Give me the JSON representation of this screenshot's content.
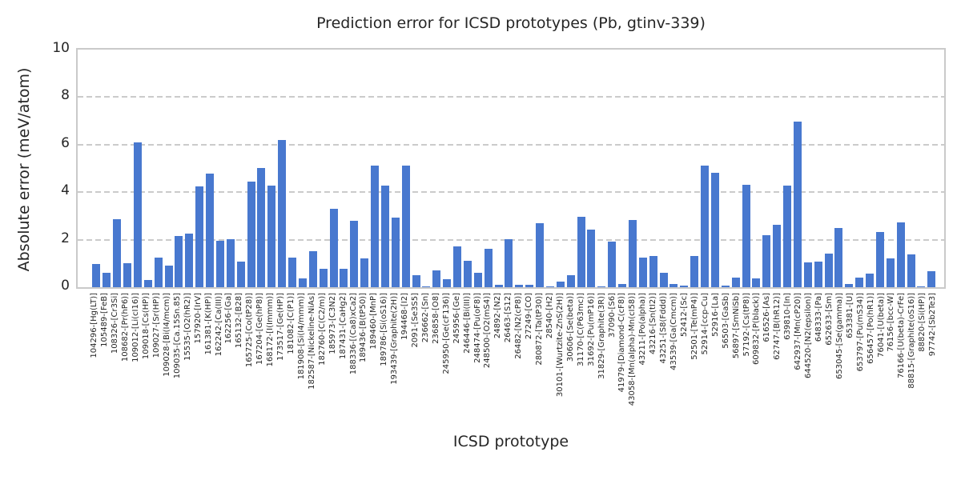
{
  "figure": {
    "background": "#ffffff",
    "bar_color": "#4878CF",
    "grid_color": "#cbcbcb",
    "spine_color": "#cacaca",
    "text_color": "#262626"
  },
  "chart_data": {
    "type": "bar",
    "title": "Prediction error for ICSD prototypes (Pb, gtinv-339)",
    "xlabel": "ICSD prototype",
    "ylabel": "Absolute error (meV/atom)",
    "ylim": [
      0,
      10
    ],
    "yticks": [
      0,
      2,
      4,
      6,
      8,
      10
    ],
    "grid": "horizontal-dashed",
    "legend": "none",
    "categories": [
      "104296-[Hg(LT)]",
      "105489-[FeB]",
      "108326-[Cr3Si]",
      "108682-[Pr(hP6)]",
      "109012-[Li(cI16)]",
      "109018-[Cs(HP)]",
      "109027-[Sr(HP)]",
      "109028-[Bi(I4/mcm)]",
      "109035-[Ca.15Sn.85]",
      "15535-[O2(hR2)]",
      "157920-[IrV]",
      "161381-[K(HP)]",
      "162242-[Ca(III)]",
      "162256-[Ga]",
      "165132-[B28]",
      "165725-[Co(tP28)]",
      "167204-[Ge(hP8)]",
      "168172-[I(Immm)]",
      "173517-[Ge(HP)]",
      "181082-[C(P1)]",
      "181908-[Si(I4/mmm)]",
      "182587-[Nickeline-NiAs]",
      "182760-[C(C2/m)]",
      "185973-[C3N2]",
      "187431-[CaHg2]",
      "188336-[(Ca8)xCa2]",
      "189436-[B(tP50)]",
      "189460-[MnP]",
      "189786-[Si(oS16)]",
      "193439-[Graphite(2H)]",
      "194468-[I2]",
      "2091-[Se3S5]",
      "236662-[Sn]",
      "236858-[O8]",
      "245950-[Ge(cF136)]",
      "245956-[Ge]",
      "246446-[Bi(III)]",
      "248474-[Pu(oF8)]",
      "248500-[O2(mS4)]",
      "24892-[N2]",
      "26463-[S12]",
      "26482-[N2(cP8)]",
      "27249-[CO]",
      "280872-[Ta(tP30)]",
      "28540-[H2]",
      "30101-[Wurtzite-ZnS(2H)]",
      "30606-[Se(beta)]",
      "31170-[C(P63mc)]",
      "31692-[Pu(mP16)]",
      "31829-[Graphite(3R)]",
      "37090-[S6]",
      "41979-[Diamond-C(cF8)]",
      "43058-[Mn(alpha)-Mn(cI58)]",
      "43211-[Po(alpha)]",
      "43216-[Sn(tI2)]",
      "43251-[S8(Fddd)]",
      "43539-[Ga(Cmcm)]",
      "52412-[Sc]",
      "52501-[Te(mP4)]",
      "52914-[ccp-Cu]",
      "52916-[La]",
      "56503-[GaSb]",
      "56897-[SmNiSb]",
      "57192-[Cs(tP8)]",
      "609832-[P(black)]",
      "616526-[As]",
      "62747-[B(hR12)]",
      "639810-[In]",
      "642937-[Mn(cP20)]",
      "644520-[N2(epsilon)]",
      "648333-[Pa]",
      "652633-[Sm]",
      "653045-[Se(gamma)]",
      "653381-[U]",
      "653797-[Pu(mS34)]",
      "656457-[Po(hR1)]",
      "76041-[U(beta)]",
      "76156-[bcc-W]",
      "76166-[U(beta)-CrFe]",
      "88815-[Graphite(oS16)]",
      "88820-[Si(HP)]",
      "97742-[Sb2Te3]"
    ],
    "values": [
      0.97,
      0.62,
      2.85,
      1.0,
      6.1,
      0.32,
      1.25,
      0.91,
      2.17,
      2.26,
      4.25,
      4.78,
      1.95,
      2.03,
      1.07,
      4.46,
      5.02,
      4.28,
      6.18,
      1.23,
      0.36,
      1.53,
      0.77,
      3.3,
      0.79,
      2.78,
      1.21,
      5.12,
      4.26,
      2.93,
      5.11,
      0.5,
      0.05,
      0.72,
      0.33,
      1.72,
      1.11,
      0.61,
      1.63,
      0.1,
      2.02,
      0.1,
      0.09,
      2.71,
      0.03,
      0.24,
      0.5,
      2.96,
      2.42,
      0.03,
      1.91,
      0.12,
      2.83,
      1.24,
      1.31,
      0.59,
      0.13,
      0.07,
      1.32,
      5.13,
      4.8,
      0.06,
      0.39,
      4.32,
      0.37,
      2.19,
      2.61,
      4.28,
      6.98,
      1.04,
      1.07,
      1.4,
      2.5,
      0.12,
      0.42,
      0.57,
      2.33,
      1.22,
      2.74,
      1.39,
      0.05,
      0.68
    ]
  }
}
